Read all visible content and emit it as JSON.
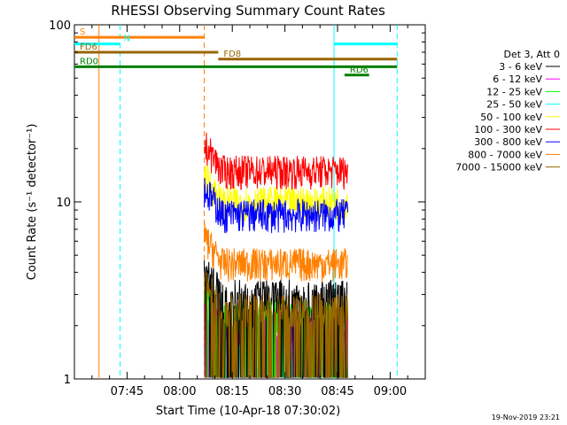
{
  "chart_data": {
    "type": "line",
    "title": "RHESSI Observing Summary Count Rates",
    "xlabel": "Start Time (10-Apr-18 07:30:02)",
    "ylabel": "Count Rate (s⁻¹ detector⁻¹)",
    "yscale": "log",
    "ylim": [
      1,
      100
    ],
    "xlim": [
      "07:30",
      "09:10"
    ],
    "y_ticks": [
      "1",
      "10",
      "100"
    ],
    "x_ticks": [
      "07:45",
      "08:00",
      "08:15",
      "08:30",
      "08:45",
      "09:00"
    ],
    "legend_header": "Det 3, Att 0",
    "legend_placement": "right",
    "series": [
      {
        "name": "3 - 6 keV",
        "color": "#000000",
        "level": 3
      },
      {
        "name": "6 - 12 keV",
        "color": "#ff00ff",
        "level": 2
      },
      {
        "name": "12 - 25 keV",
        "color": "#00ff00",
        "level": 2.3
      },
      {
        "name": "25 - 50 keV",
        "color": "#00ffff",
        "level": 1.4
      },
      {
        "name": "50 - 100 keV",
        "color": "#ffff00",
        "level": 10
      },
      {
        "name": "100 - 300 keV",
        "color": "#ff0000",
        "level": 15
      },
      {
        "name": "300 - 800 keV",
        "color": "#0000ff",
        "level": 8.5
      },
      {
        "name": "800 - 7000 keV",
        "color": "#ff8000",
        "level": 4.5
      },
      {
        "name": "7000 - 15000 keV",
        "color": "#996600",
        "level": 2.5
      }
    ],
    "data_start": "08:07",
    "data_end": "08:48",
    "annotations": {
      "vertical_lines": [
        {
          "time": "07:37",
          "color": "#ff8000",
          "style": "solid"
        },
        {
          "time": "07:43",
          "color": "#00ffff",
          "style": "dashed"
        },
        {
          "time": "08:07",
          "color": "#ff8000",
          "style": "dashed"
        },
        {
          "time": "08:44",
          "color": "#00ffff",
          "style": "solid"
        },
        {
          "time": "09:02",
          "color": "#00ffff",
          "style": "dashed"
        }
      ],
      "bars": [
        {
          "label": "S",
          "color": "#ff8000",
          "start": "07:30",
          "end": "08:07",
          "y": 85
        },
        {
          "label": "N",
          "color": "#00ffff",
          "start": "07:30",
          "end": "07:43",
          "y": 78,
          "label_side": "right"
        },
        {
          "label": "",
          "color": "#00ffff",
          "start": "08:44",
          "end": "09:02",
          "y": 78
        },
        {
          "label": "FD6",
          "color": "#996600",
          "start": "07:30",
          "end": "08:11",
          "y": 70
        },
        {
          "label": "FD8",
          "color": "#996600",
          "start": "08:11",
          "end": "09:02",
          "y": 64
        },
        {
          "label": "RD0",
          "color": "#008000",
          "start": "07:30",
          "end": "09:02",
          "y": 58
        },
        {
          "label": "RD6",
          "color": "#008000",
          "start": "08:47",
          "end": "08:54",
          "y": 52
        }
      ]
    }
  },
  "footer": {
    "date": "19-Nov-2019 23:21"
  }
}
